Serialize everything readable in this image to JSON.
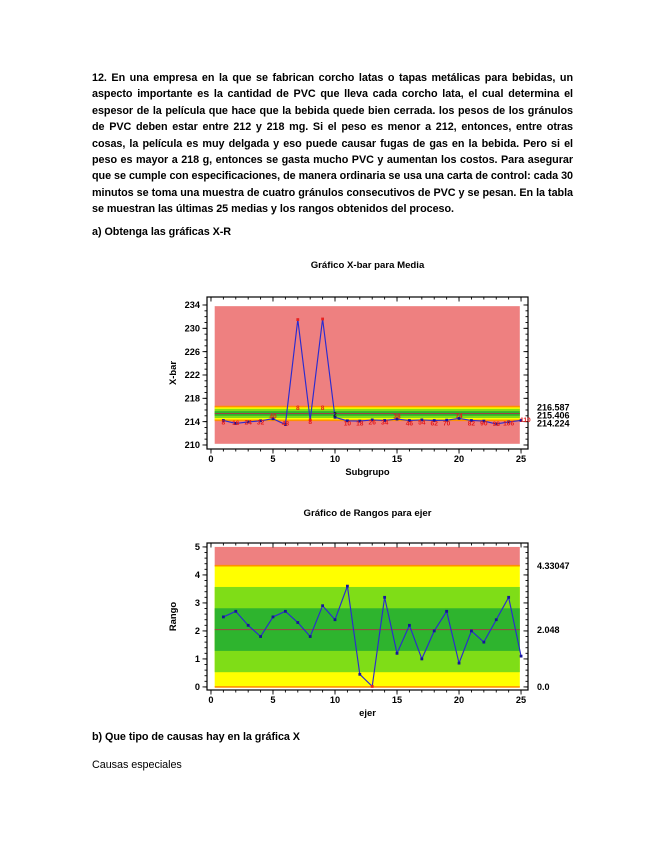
{
  "document": {
    "problem_text": "12. En una empresa en la que se fabrican corcho latas o tapas metálicas para bebidas, un aspecto importante es la cantidad de PVC que lleva cada corcho lata, el cual determina el espesor de la película que hace que la bebida quede bien cerrada. los pesos de los gránulos de PVC deben estar entre 212 y 218 mg. Si el peso es menor a 212, entonces, entre otras cosas, la película es muy delgada y eso puede causar fugas de gas en la bebida. Pero si el peso es mayor a 218 g, entonces se gasta mucho PVC y aumentan los costos. Para asegurar que se cumple con especificaciones, de manera ordinaria se usa una carta de control: cada 30 minutos se toma una muestra de cuatro gránulos consecutivos de PVC y se pesan. En la tabla se muestran las últimas 25 medias y los rangos obtenidos del proceso.",
    "section_a": "a) Obtenga las gráficas X-R",
    "section_b": "b) Que tipo de causas hay en la gráfica X",
    "answer_b": "Causas especiales"
  },
  "colors": {
    "zone_red": "#ee8080",
    "zone_yellow": "#ffff00",
    "zone_light_green": "#7fdd17",
    "zone_green": "#2eb42e",
    "limit_orange": "#ff9000",
    "center_line": "#9c4242",
    "series_blue": "#2b2bd0",
    "marker_navy": "#16169a",
    "marker_red": "#e82020",
    "label_red": "#e31b1b",
    "label_black": "#1a1a1a"
  },
  "chart_data": [
    {
      "type": "line",
      "title": "Gráfico X-bar para Media",
      "xlabel": "Subgrupo",
      "ylabel": "X-bar",
      "xlim": [
        -0.32,
        25.56
      ],
      "ylim": [
        209.31,
        235.37
      ],
      "xticks": [
        0,
        5,
        10,
        15,
        20,
        25
      ],
      "yticks": [
        210,
        214,
        218,
        222,
        226,
        230,
        234
      ],
      "minor_x_step": 1,
      "minor_y_step": 1,
      "zone_x": [
        0.3,
        24.9
      ],
      "zones": [
        {
          "from": 210.2,
          "to": 233.8,
          "color": "zone_red"
        },
        {
          "from": 214.224,
          "to": 216.587,
          "color": "zone_yellow"
        },
        {
          "from": 214.618,
          "to": 216.193,
          "color": "zone_light_green"
        },
        {
          "from": 215.012,
          "to": 215.799,
          "color": "zone_green"
        }
      ],
      "limit_lines": [
        {
          "y": 216.587,
          "color": "limit_orange",
          "width": 1.6
        },
        {
          "y": 214.224,
          "color": "limit_orange",
          "width": 1.6
        },
        {
          "y": 215.406,
          "color": "center_line",
          "width": 1.0
        }
      ],
      "ucl": 216.587,
      "cl": 215.406,
      "lcl": 214.224,
      "right_labels": [
        {
          "text": "216.587",
          "y": 216.5
        },
        {
          "text": "215.406",
          "y": 215.12
        },
        {
          "text": "214.224",
          "y": 213.74
        }
      ],
      "x": [
        1,
        2,
        3,
        4,
        5,
        6,
        7,
        8,
        9,
        10,
        11,
        12,
        13,
        14,
        15,
        16,
        17,
        18,
        19,
        20,
        21,
        22,
        23,
        24,
        25
      ],
      "values": [
        214.2,
        213.7,
        213.95,
        214.15,
        214.5,
        213.5,
        231.5,
        214.3,
        231.6,
        214.75,
        214.15,
        214.1,
        214.3,
        214.2,
        214.45,
        214.2,
        214.3,
        214.2,
        214.25,
        214.55,
        214.2,
        214.1,
        213.6,
        213.95,
        214.2
      ],
      "red_points": [
        7,
        8,
        9
      ],
      "point_labels": [
        {
          "x": 1,
          "y": 213.85,
          "text": "8",
          "color": "label_red"
        },
        {
          "x": 2,
          "y": 213.8,
          "text": "16",
          "color": "label_red"
        },
        {
          "x": 3,
          "y": 213.85,
          "text": "24",
          "color": "label_red"
        },
        {
          "x": 4,
          "y": 213.85,
          "text": "32",
          "color": "label_red"
        },
        {
          "x": 5,
          "y": 214.9,
          "text": "40",
          "color": "label_red"
        },
        {
          "x": 6,
          "y": 213.7,
          "text": "48",
          "color": "label_red"
        },
        {
          "x": 7,
          "y": 216.35,
          "text": "8",
          "color": "label_red"
        },
        {
          "x": 8,
          "y": 213.95,
          "text": "8",
          "color": "label_red"
        },
        {
          "x": 9,
          "y": 216.35,
          "text": "8",
          "color": "label_red"
        },
        {
          "x": 10,
          "y": 215.3,
          "text": "2",
          "color": "label_black"
        },
        {
          "x": 11,
          "y": 213.75,
          "text": "10",
          "color": "label_red"
        },
        {
          "x": 12,
          "y": 213.75,
          "text": "18",
          "color": "label_red"
        },
        {
          "x": 13,
          "y": 213.85,
          "text": "26",
          "color": "label_red"
        },
        {
          "x": 14,
          "y": 213.85,
          "text": "34",
          "color": "label_red"
        },
        {
          "x": 15,
          "y": 214.9,
          "text": "38",
          "color": "label_red"
        },
        {
          "x": 16,
          "y": 213.75,
          "text": "46",
          "color": "label_red"
        },
        {
          "x": 17,
          "y": 213.85,
          "text": "54",
          "color": "label_red"
        },
        {
          "x": 18,
          "y": 213.75,
          "text": "62",
          "color": "label_red"
        },
        {
          "x": 19,
          "y": 213.75,
          "text": "70",
          "color": "label_red"
        },
        {
          "x": 20,
          "y": 215.0,
          "text": "74",
          "color": "label_red"
        },
        {
          "x": 21,
          "y": 213.75,
          "text": "82",
          "color": "label_red"
        },
        {
          "x": 22,
          "y": 213.75,
          "text": "90",
          "color": "label_red"
        },
        {
          "x": 23,
          "y": 213.6,
          "text": "98",
          "color": "label_red"
        },
        {
          "x": 24,
          "y": 213.75,
          "text": "106",
          "color": "label_red"
        },
        {
          "x": 25.35,
          "y": 214.3,
          "text": "110",
          "color": "label_red"
        }
      ]
    },
    {
      "type": "line",
      "title": "Gráfico de Rangos para ejer",
      "xlabel": "ejer",
      "ylabel": "Rango",
      "xlim": [
        -0.32,
        25.56
      ],
      "ylim": [
        -0.11,
        5.14
      ],
      "xticks": [
        0,
        5,
        10,
        15,
        20,
        25
      ],
      "yticks": [
        0,
        1,
        2,
        3,
        4,
        5
      ],
      "minor_x_step": 1,
      "minor_y_step": 0.2,
      "zone_x": [
        0.3,
        24.9
      ],
      "zones": [
        {
          "from": 0.0,
          "to": 4.3305,
          "color": "zone_yellow"
        },
        {
          "from": 0.526,
          "to": 3.57,
          "color": "zone_light_green"
        },
        {
          "from": 1.287,
          "to": 2.809,
          "color": "zone_green"
        },
        {
          "from": 4.3305,
          "to": 5.0,
          "color": "zone_red"
        }
      ],
      "limit_lines": [
        {
          "y": 4.33047,
          "color": "limit_orange",
          "width": 1.6
        },
        {
          "y": 0.0,
          "color": "limit_orange",
          "width": 1.6
        },
        {
          "y": 2.048,
          "color": "center_line",
          "width": 1.0
        }
      ],
      "ucl": 4.33047,
      "cl": 2.048,
      "lcl": 0.0,
      "right_labels": [
        {
          "text": "4.33047",
          "y": 4.33047
        },
        {
          "text": "2.048",
          "y": 2.048
        },
        {
          "text": "0.0",
          "y": 0.0
        }
      ],
      "x": [
        1,
        2,
        3,
        4,
        5,
        6,
        7,
        8,
        9,
        10,
        11,
        12,
        13,
        14,
        15,
        16,
        17,
        18,
        19,
        20,
        21,
        22,
        23,
        24,
        25
      ],
      "values": [
        2.5,
        2.7,
        2.2,
        1.8,
        2.5,
        2.7,
        2.3,
        1.8,
        2.9,
        2.4,
        3.6,
        0.45,
        0.02,
        3.2,
        1.2,
        2.2,
        1.0,
        2.0,
        2.7,
        0.85,
        2.0,
        1.6,
        2.4,
        3.2,
        1.1
      ],
      "red_points": [
        13
      ],
      "point_labels": []
    }
  ]
}
